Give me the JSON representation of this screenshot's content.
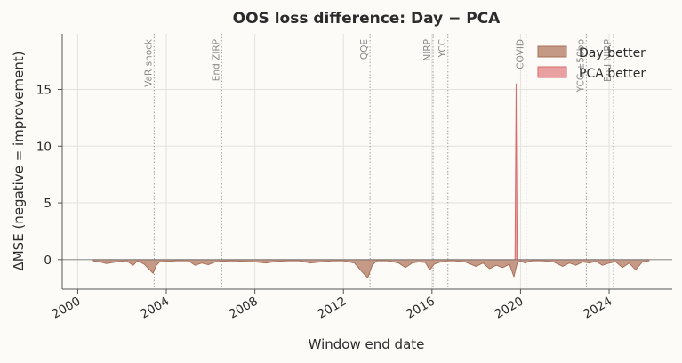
{
  "chart_data": {
    "type": "area",
    "title": "OOS loss difference: Day − PCA",
    "xlabel": "Window end date",
    "ylabel": "ΔMSE (negative = improvement)",
    "xlim": [
      1999.3,
      2026.85
    ],
    "ylim": [
      -2.6,
      19.9
    ],
    "xticks": [
      2000,
      2004,
      2008,
      2012,
      2016,
      2020,
      2024
    ],
    "xtick_labels": [
      "2000",
      "2004",
      "2008",
      "2012",
      "2016",
      "2020",
      "2024"
    ],
    "yticks": [
      0,
      5,
      10,
      15
    ],
    "ytick_labels": [
      "0",
      "5",
      "10",
      "15"
    ],
    "grid": true,
    "legend_position": "top-right",
    "series": [
      {
        "name": "Day better",
        "color": "#c49a87",
        "edge_color": "#a8705a",
        "x": [
          2000.7,
          2001.0,
          2001.3,
          2001.6,
          2001.9,
          2002.2,
          2002.5,
          2002.7,
          2003.0,
          2003.2,
          2003.4,
          2003.55,
          2003.7,
          2004.0,
          2004.5,
          2005.0,
          2005.3,
          2005.6,
          2005.9,
          2006.2,
          2006.5,
          2007.0,
          2007.5,
          2008.0,
          2008.5,
          2009.0,
          2009.5,
          2010.0,
          2010.5,
          2011.0,
          2011.5,
          2012.0,
          2012.5,
          2012.9,
          2013.1,
          2013.3,
          2013.5,
          2014.0,
          2014.5,
          2014.8,
          2015.1,
          2015.4,
          2015.7,
          2015.9,
          2016.1,
          2016.4,
          2016.7,
          2017.0,
          2017.5,
          2018.0,
          2018.3,
          2018.6,
          2018.9,
          2019.2,
          2019.5,
          2019.7,
          2019.85,
          2020.0,
          2020.2,
          2020.5,
          2021.0,
          2021.5,
          2021.9,
          2022.2,
          2022.5,
          2022.8,
          2023.1,
          2023.4,
          2023.7,
          2024.0,
          2024.3,
          2024.6,
          2024.9,
          2025.2,
          2025.5,
          2025.8
        ],
        "values": [
          -0.1,
          -0.2,
          -0.35,
          -0.25,
          -0.15,
          -0.1,
          -0.5,
          -0.1,
          -0.4,
          -0.8,
          -1.2,
          -0.5,
          -0.2,
          -0.15,
          -0.1,
          -0.1,
          -0.5,
          -0.3,
          -0.45,
          -0.2,
          -0.15,
          -0.1,
          -0.15,
          -0.2,
          -0.3,
          -0.15,
          -0.1,
          -0.1,
          -0.3,
          -0.2,
          -0.1,
          -0.1,
          -0.3,
          -1.2,
          -1.6,
          -0.5,
          -0.1,
          -0.1,
          -0.3,
          -0.7,
          -0.3,
          -0.2,
          -0.25,
          -0.9,
          -0.4,
          -0.2,
          -0.1,
          -0.1,
          -0.2,
          -0.6,
          -0.3,
          -0.8,
          -0.5,
          -0.7,
          -0.4,
          -1.5,
          -0.3,
          -0.1,
          -0.3,
          -0.1,
          -0.1,
          -0.2,
          -0.6,
          -0.3,
          -0.5,
          -0.2,
          -0.3,
          -0.15,
          -0.5,
          -0.3,
          -0.2,
          -0.7,
          -0.3,
          -0.9,
          -0.2,
          -0.1
        ]
      },
      {
        "name": "PCA better",
        "color": "#e8a1a0",
        "edge_color": "#d86a6a",
        "x": [
          2019.75,
          2019.8,
          2019.85
        ],
        "values": [
          0,
          15.5,
          0
        ]
      }
    ],
    "events": [
      {
        "date": 2003.45,
        "label": "VaR shock"
      },
      {
        "date": 2006.5,
        "label": "End ZIRP"
      },
      {
        "date": 2013.2,
        "label": "QQE"
      },
      {
        "date": 2016.05,
        "label": "NIRP"
      },
      {
        "date": 2016.72,
        "label": "YCC"
      },
      {
        "date": 2020.25,
        "label": "COVID"
      },
      {
        "date": 2022.97,
        "label": "YCC ±50bp"
      },
      {
        "date": 2024.2,
        "label": "End NIRP"
      }
    ]
  }
}
